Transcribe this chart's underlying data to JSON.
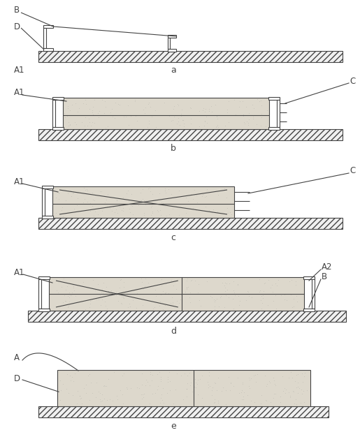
{
  "bg_color": "#ffffff",
  "line_color": "#444444",
  "hatch_color": "#444444",
  "concrete_color": "#ddd8cc",
  "concrete_dot_color": "#888888",
  "panels": [
    "a",
    "b",
    "c",
    "d",
    "e"
  ],
  "figsize": [
    5.15,
    6.26
  ],
  "dpi": 100
}
